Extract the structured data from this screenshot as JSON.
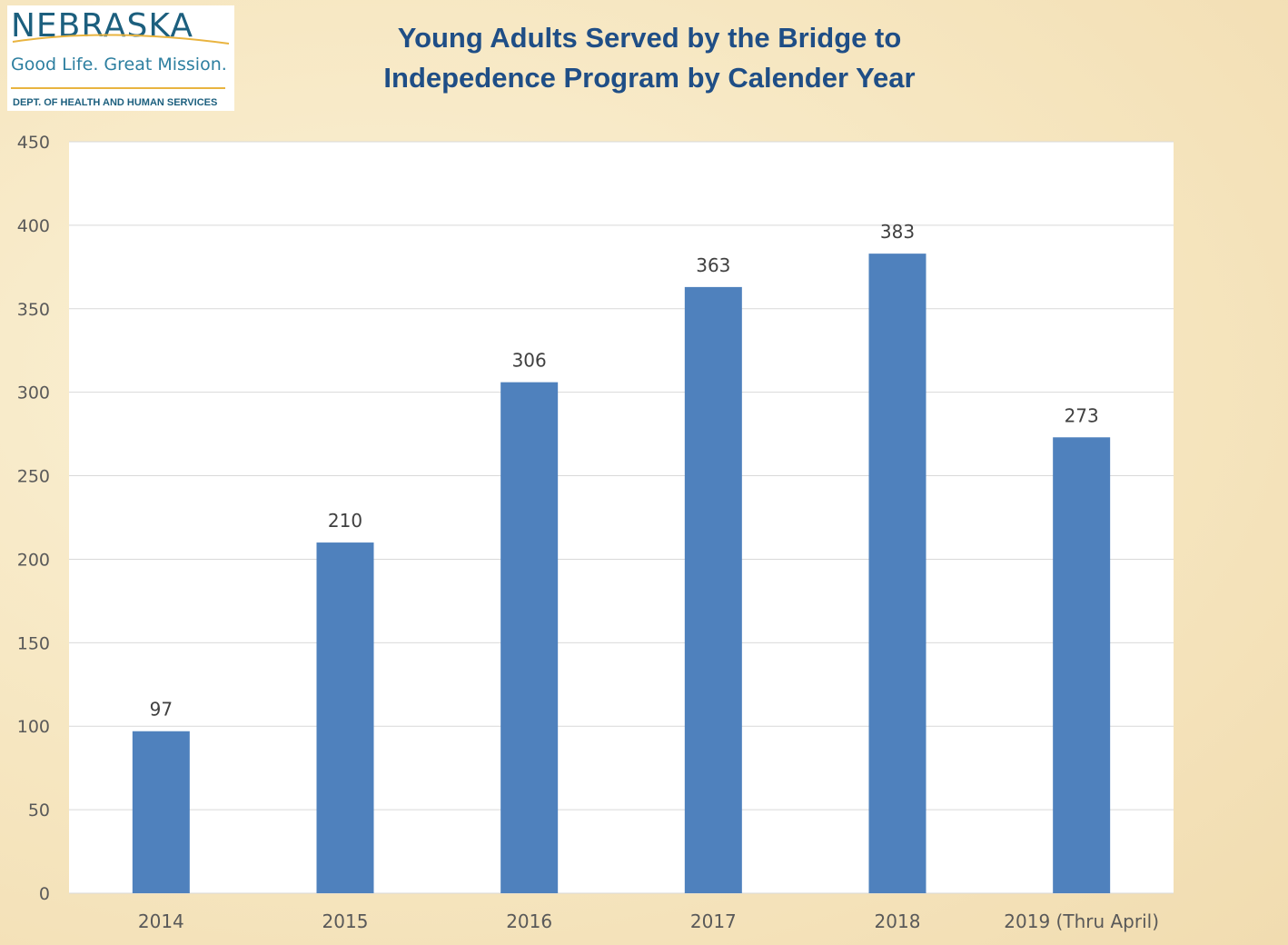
{
  "logo": {
    "name": "NEBRASKA",
    "tagline": "Good Life. Great Mission.",
    "dept": "DEPT. OF HEALTH AND HUMAN SERVICES"
  },
  "colors": {
    "bar": "#4f81bd",
    "title": "#1f4e86",
    "gridline": "#d9d9d9",
    "plot_background": "#ffffff"
  },
  "chart_data": {
    "type": "bar",
    "title": "Young Adults Served by the Bridge to Indepedence Program by Calender Year",
    "title_lines": [
      "Young Adults Served by the Bridge to",
      "Indepedence Program by Calender Year"
    ],
    "categories": [
      "2014",
      "2015",
      "2016",
      "2017",
      "2018",
      "2019 (Thru April)"
    ],
    "values": [
      97,
      210,
      306,
      363,
      383,
      273
    ],
    "data_labels": [
      "97",
      "210",
      "306",
      "363",
      "383",
      "273"
    ],
    "xlabel": "",
    "ylabel": "",
    "ylim": [
      0,
      450
    ],
    "yticks": [
      0,
      50,
      100,
      150,
      200,
      250,
      300,
      350,
      400,
      450
    ],
    "grid": true,
    "legend": "none"
  }
}
